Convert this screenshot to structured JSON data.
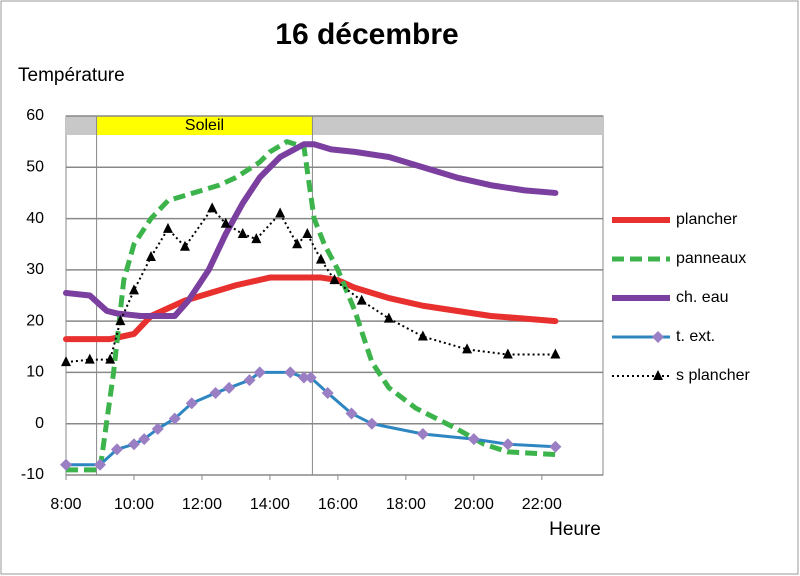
{
  "chart_data": {
    "type": "line",
    "title": "16 décembre",
    "y_label": "Température",
    "x_label": "Heure",
    "xlim": [
      8,
      23.8
    ],
    "ylim": [
      -10,
      60
    ],
    "xticks": [
      {
        "value": 8,
        "label": "8:00"
      },
      {
        "value": 10,
        "label": "10:00"
      },
      {
        "value": 12,
        "label": "12:00"
      },
      {
        "value": 14,
        "label": "14:00"
      },
      {
        "value": 16,
        "label": "16:00"
      },
      {
        "value": 18,
        "label": "18:00"
      },
      {
        "value": 20,
        "label": "20:00"
      },
      {
        "value": 22,
        "label": "22:00"
      }
    ],
    "yticks": [
      -10,
      0,
      10,
      20,
      30,
      40,
      50,
      60
    ],
    "grid": true,
    "sun_period": {
      "label": "Soleil",
      "start": 8.9,
      "end": 15.25,
      "color": "#ffff00"
    },
    "series": [
      {
        "name": "plancher",
        "color": "#e8312f",
        "width": 6,
        "dash": "",
        "marker": "none",
        "x": [
          8,
          9.3,
          10,
          10.5,
          11.5,
          12.5,
          13,
          14,
          15,
          15.5,
          16,
          16.5,
          17.5,
          18.5,
          19.5,
          20.5,
          21.5,
          22.4
        ],
        "values": [
          16.5,
          16.5,
          17.5,
          21,
          24,
          26,
          27,
          28.5,
          28.5,
          28.5,
          28,
          26.5,
          24.5,
          23,
          22,
          21,
          20.5,
          20
        ]
      },
      {
        "name": "panneaux",
        "color": "#3cb44b",
        "width": 5,
        "dash": "12 6",
        "marker": "none",
        "x": [
          8,
          9,
          9.4,
          9.7,
          10,
          10.5,
          11,
          11.5,
          12.5,
          13,
          13.7,
          14,
          14.5,
          15,
          15.3,
          15.6,
          16,
          16.5,
          17,
          17.5,
          18.3,
          19.5,
          20.3,
          21,
          22.4
        ],
        "values": [
          -9,
          -9,
          10,
          28,
          35,
          40,
          43.5,
          44.5,
          46.5,
          48,
          51,
          53,
          55,
          54,
          40,
          35,
          30,
          22,
          12,
          7,
          3,
          -1,
          -4,
          -5.5,
          -6
        ]
      },
      {
        "name": "ch. eau",
        "color": "#7b3fa0",
        "width": 6,
        "dash": "",
        "marker": "none",
        "x": [
          8,
          8.7,
          9.2,
          9.5,
          10.2,
          10.8,
          11.2,
          11.6,
          12.2,
          12.7,
          13.2,
          13.7,
          14.3,
          15,
          15.3,
          15.8,
          16.5,
          17.5,
          18.5,
          19.5,
          20.5,
          21.5,
          22.4
        ],
        "values": [
          25.5,
          25,
          22,
          21.5,
          21,
          21,
          21,
          24,
          30,
          37,
          43,
          48,
          52,
          54.5,
          54.5,
          53.5,
          53,
          52,
          50,
          48,
          46.5,
          45.5,
          45
        ]
      },
      {
        "name": "t. ext.",
        "color": "#2e86c1",
        "width": 3,
        "dash": "",
        "marker": "diamond",
        "marker_color": "#9b7fc4",
        "x": [
          8,
          9,
          9.5,
          10,
          10.3,
          10.7,
          11.2,
          11.7,
          12.4,
          12.8,
          13.4,
          13.7,
          14.6,
          15,
          15.2,
          15.7,
          16.4,
          17,
          18.5,
          20,
          21,
          22.4
        ],
        "values": [
          -8,
          -8,
          -5,
          -4,
          -3,
          -1,
          1,
          4,
          6,
          7,
          8.5,
          10,
          10,
          9,
          9,
          6,
          2,
          0,
          -2,
          -3,
          -4,
          -4.5
        ]
      },
      {
        "name": "s plancher",
        "color": "#000000",
        "width": 2,
        "dash": "2 3",
        "marker": "triangle",
        "marker_color": "#000000",
        "x": [
          8,
          8.7,
          9.3,
          9.6,
          10,
          10.5,
          11,
          11.5,
          12.3,
          12.7,
          13.2,
          13.6,
          14.3,
          14.8,
          15.1,
          15.5,
          15.9,
          16.7,
          17.5,
          18.5,
          19.8,
          21,
          22.4
        ],
        "values": [
          12,
          12.5,
          12.5,
          20,
          26,
          32.5,
          38,
          34.5,
          42,
          39,
          37,
          36,
          41,
          35,
          37,
          32,
          28,
          24,
          20.5,
          17,
          14.5,
          13.5,
          13.5
        ]
      }
    ]
  }
}
